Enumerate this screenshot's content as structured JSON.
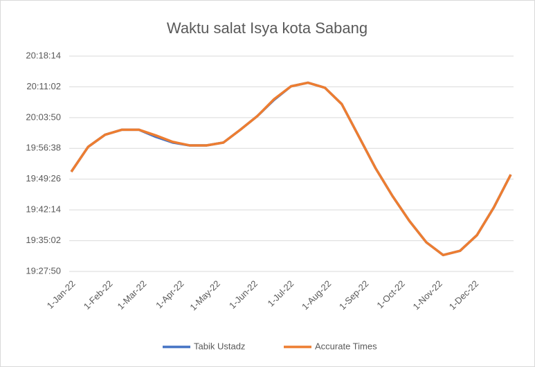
{
  "chart_data": {
    "type": "line",
    "title": "Waktu salat Isya kota Sabang",
    "x": [
      0,
      14,
      28,
      42,
      56,
      70,
      84,
      98,
      112,
      126,
      140,
      154,
      168,
      182,
      196,
      210,
      224,
      238,
      252,
      266,
      280,
      294,
      308,
      322,
      336,
      350,
      364
    ],
    "xlim": [
      0,
      364
    ],
    "xticks": [
      {
        "value": 0,
        "label": "1-Jan-22"
      },
      {
        "value": 31,
        "label": "1-Feb-22"
      },
      {
        "value": 59,
        "label": "1-Mar-22"
      },
      {
        "value": 90,
        "label": "1-Apr-22"
      },
      {
        "value": 120,
        "label": "1-May-22"
      },
      {
        "value": 151,
        "label": "1-Jun-22"
      },
      {
        "value": 181,
        "label": "1-Jul-22"
      },
      {
        "value": 212,
        "label": "1-Aug-22"
      },
      {
        "value": 243,
        "label": "1-Sep-22"
      },
      {
        "value": 273,
        "label": "1-Oct-22"
      },
      {
        "value": 304,
        "label": "1-Nov-22"
      },
      {
        "value": 334,
        "label": "1-Dec-22"
      }
    ],
    "ylim": [
      70070,
      73094
    ],
    "yticks": [
      {
        "value": 70070,
        "label": "19:27:50"
      },
      {
        "value": 70502,
        "label": "19:35:02"
      },
      {
        "value": 70934,
        "label": "19:42:14"
      },
      {
        "value": 71366,
        "label": "19:49:26"
      },
      {
        "value": 71798,
        "label": "19:56:38"
      },
      {
        "value": 72230,
        "label": "20:03:50"
      },
      {
        "value": 72662,
        "label": "20:11:02"
      },
      {
        "value": 73094,
        "label": "20:18:14"
      }
    ],
    "grid": true,
    "legend": "bottom",
    "series": [
      {
        "name": "Tabik Ustadz",
        "color": "#4472c4",
        "values": [
          71470,
          71820,
          71990,
          72060,
          72060,
          71960,
          71880,
          71840,
          71840,
          71880,
          72060,
          72250,
          72480,
          72670,
          72720,
          72650,
          72420,
          71970,
          71520,
          71130,
          70780,
          70480,
          70300,
          70360,
          70580,
          70970,
          71430
        ]
      },
      {
        "name": "Accurate Times",
        "color": "#ed7d31",
        "values": [
          71470,
          71820,
          71990,
          72060,
          72060,
          71980,
          71890,
          71840,
          71840,
          71880,
          72060,
          72250,
          72490,
          72670,
          72720,
          72650,
          72420,
          71970,
          71520,
          71130,
          70780,
          70480,
          70300,
          70360,
          70580,
          70970,
          71430
        ]
      }
    ]
  }
}
